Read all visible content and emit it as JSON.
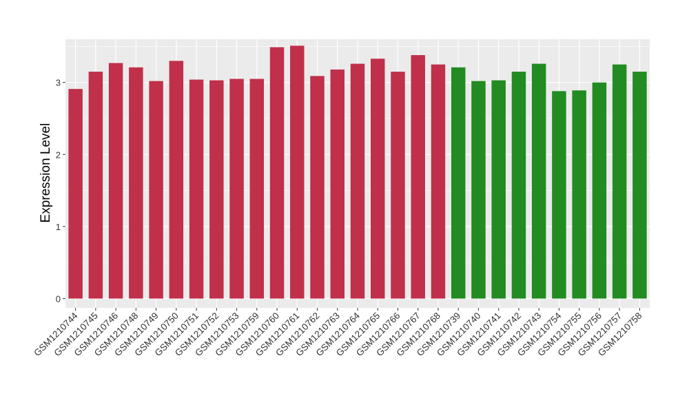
{
  "chart_data": {
    "type": "bar",
    "title": "",
    "xlabel": "",
    "ylabel": "Expression Level",
    "ylim": [
      -0.13,
      3.6
    ],
    "yticks": [
      0,
      1,
      2,
      3
    ],
    "grid": true,
    "legend": "none",
    "categories": [
      "GSM1210744",
      "GSM1210745",
      "GSM1210746",
      "GSM1210748",
      "GSM1210749",
      "GSM1210750",
      "GSM1210751",
      "GSM1210752",
      "GSM1210753",
      "GSM1210759",
      "GSM1210760",
      "GSM1210761",
      "GSM1210762",
      "GSM1210763",
      "GSM1210764",
      "GSM1210765",
      "GSM1210766",
      "GSM1210767",
      "GSM1210768",
      "GSM1210739",
      "GSM1210740",
      "GSM1210741",
      "GSM1210742",
      "GSM1210743",
      "GSM1210754",
      "GSM1210755",
      "GSM1210756",
      "GSM1210757",
      "GSM1210758"
    ],
    "values": [
      2.91,
      3.15,
      3.27,
      3.21,
      3.02,
      3.3,
      3.04,
      3.03,
      3.05,
      3.05,
      3.49,
      3.51,
      3.09,
      3.18,
      3.26,
      3.33,
      3.15,
      3.38,
      3.25,
      3.21,
      3.02,
      3.03,
      3.15,
      3.26,
      2.88,
      2.89,
      3.0,
      3.25,
      3.15
    ],
    "groups": [
      "a",
      "a",
      "a",
      "a",
      "a",
      "a",
      "a",
      "a",
      "a",
      "a",
      "a",
      "a",
      "a",
      "a",
      "a",
      "a",
      "a",
      "a",
      "a",
      "b",
      "b",
      "b",
      "b",
      "b",
      "b",
      "b",
      "b",
      "b",
      "b"
    ],
    "group_colors": {
      "a": "#c0304a",
      "b": "#228b22"
    },
    "panel_background": "#ebebeb",
    "grid_color": "#ffffff"
  }
}
